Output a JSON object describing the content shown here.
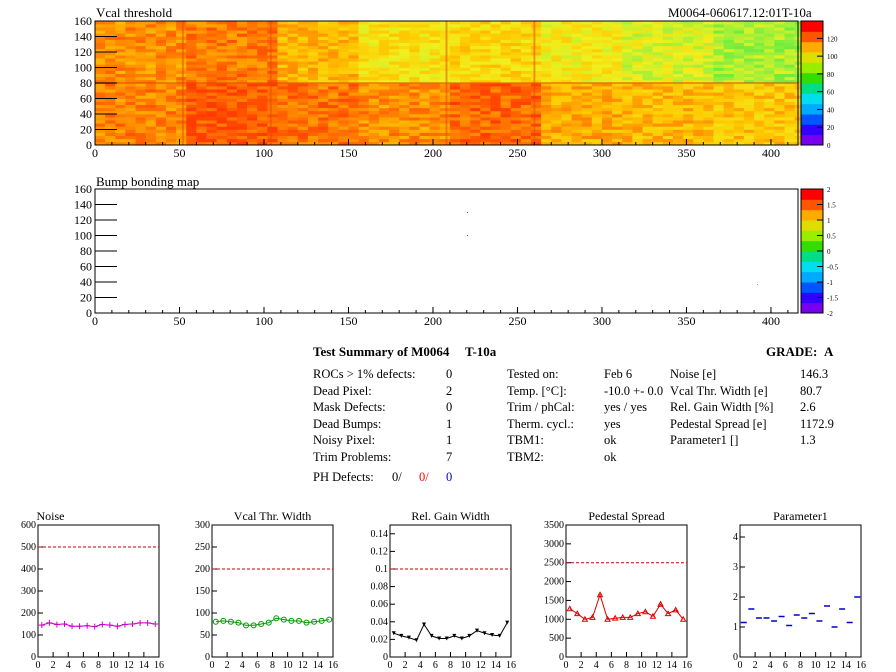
{
  "header": {
    "map1_title": "Vcal threshold",
    "map2_title": "Bump bonding map",
    "module_id": "M0064-060617.12:01T-10a"
  },
  "map1": {
    "xticks": [
      "0",
      "50",
      "100",
      "150",
      "200",
      "250",
      "300",
      "350",
      "400"
    ],
    "yticks": [
      "0",
      "20",
      "40",
      "60",
      "80",
      "100",
      "120",
      "140",
      "160"
    ],
    "palette_ticks": [
      "0",
      "20",
      "40",
      "60",
      "80",
      "100",
      "120"
    ]
  },
  "map2": {
    "xticks": [
      "0",
      "50",
      "100",
      "150",
      "200",
      "250",
      "300",
      "350",
      "400"
    ],
    "yticks": [
      "0",
      "20",
      "40",
      "60",
      "80",
      "100",
      "120",
      "140",
      "160"
    ],
    "palette_ticks": [
      "-2",
      "-1.5",
      "-1",
      "-0.5",
      "0",
      "0.5",
      "1",
      "1.5",
      "2"
    ]
  },
  "summary": {
    "title": "Test Summary of M0064",
    "test": "T-10a",
    "grade_label": "GRADE:",
    "grade": "A",
    "left": [
      {
        "label": "ROCs > 1% defects:",
        "value": "0"
      },
      {
        "label": "Dead Pixel:",
        "value": "2"
      },
      {
        "label": "Mask Defects:",
        "value": "0"
      },
      {
        "label": "Dead Bumps:",
        "value": "1"
      },
      {
        "label": "Noisy Pixel:",
        "value": "1"
      },
      {
        "label": "Trim Problems:",
        "value": "7"
      }
    ],
    "ph_label": "PH Defects:",
    "ph_values": [
      "0/",
      "0/",
      "0"
    ],
    "mid": [
      {
        "label": "Tested on:",
        "value": "Feb 6"
      },
      {
        "label": "Temp. [°C]:",
        "value": "-10.0 +- 0.0"
      },
      {
        "label": "Trim / phCal:",
        "value": "yes / yes"
      },
      {
        "label": "Therm. cycl.:",
        "value": "yes"
      },
      {
        "label": "TBM1:",
        "value": "ok"
      },
      {
        "label": "TBM2:",
        "value": "ok"
      }
    ],
    "right": [
      {
        "label": "Noise [e]",
        "value": "146.3"
      },
      {
        "label": "Vcal Thr. Width [e]",
        "value": "80.7"
      },
      {
        "label": "Rel. Gain Width [%]",
        "value": "2.6"
      },
      {
        "label": "Pedestal Spread [e]",
        "value": "1172.9"
      },
      {
        "label": "Parameter1 []",
        "value": "1.3"
      }
    ]
  },
  "colors": {
    "ph1": "#ff0000",
    "ph2": "#0000cc",
    "noise": "#cc00cc",
    "vcal": "#009900",
    "gain": "#000000",
    "ped": "#dd0000",
    "par": "#0000cc",
    "limit": "#cc0000"
  },
  "chart_data": [
    {
      "type": "line",
      "title": "Noise",
      "x": [
        0,
        1,
        2,
        3,
        4,
        5,
        6,
        7,
        8,
        9,
        10,
        11,
        12,
        13,
        14,
        15
      ],
      "values": [
        145,
        155,
        148,
        150,
        140,
        140,
        142,
        138,
        148,
        145,
        140,
        148,
        150,
        155,
        155,
        150
      ],
      "xlim": [
        0,
        16
      ],
      "ylim": [
        0,
        600
      ],
      "limit": 500,
      "yticks": [
        "0",
        "100",
        "200",
        "300",
        "400",
        "500",
        "600"
      ],
      "xticks": [
        "0",
        "2",
        "4",
        "6",
        "8",
        "10",
        "12",
        "14",
        "16"
      ]
    },
    {
      "type": "line",
      "title": "Vcal Thr. Width",
      "x": [
        0,
        1,
        2,
        3,
        4,
        5,
        6,
        7,
        8,
        9,
        10,
        11,
        12,
        13,
        14,
        15
      ],
      "values": [
        80,
        82,
        80,
        78,
        72,
        72,
        75,
        78,
        88,
        85,
        82,
        82,
        78,
        80,
        82,
        85
      ],
      "xlim": [
        0,
        16
      ],
      "ylim": [
        0,
        300
      ],
      "limit": 200,
      "yticks": [
        "0",
        "50",
        "100",
        "150",
        "200",
        "250",
        "300"
      ],
      "xticks": [
        "0",
        "2",
        "4",
        "6",
        "8",
        "10",
        "12",
        "14",
        "16"
      ]
    },
    {
      "type": "line",
      "title": "Rel. Gain Width",
      "x": [
        0,
        1,
        2,
        3,
        4,
        5,
        6,
        7,
        8,
        9,
        10,
        11,
        12,
        13,
        14,
        15
      ],
      "values": [
        0.027,
        0.024,
        0.022,
        0.019,
        0.037,
        0.024,
        0.021,
        0.021,
        0.024,
        0.021,
        0.024,
        0.03,
        0.027,
        0.025,
        0.024,
        0.039
      ],
      "xlim": [
        0,
        16
      ],
      "ylim": [
        0,
        0.15
      ],
      "limit": 0.1,
      "yticks": [
        "0",
        "0.02",
        "0.04",
        "0.06",
        "0.08",
        "0.1",
        "0.12",
        "0.14"
      ],
      "xticks": [
        "0",
        "2",
        "4",
        "6",
        "8",
        "10",
        "12",
        "14",
        "16"
      ]
    },
    {
      "type": "line",
      "title": "Pedestal Spread",
      "x": [
        0,
        1,
        2,
        3,
        4,
        5,
        6,
        7,
        8,
        9,
        10,
        11,
        12,
        13,
        14,
        15
      ],
      "values": [
        1280,
        1150,
        1000,
        1050,
        1650,
        1000,
        1030,
        1050,
        1050,
        1150,
        1200,
        1080,
        1400,
        1150,
        1250,
        1000
      ],
      "xlim": [
        0,
        16
      ],
      "ylim": [
        0,
        3500
      ],
      "limit": 2500,
      "yticks": [
        "0",
        "500",
        "1000",
        "1500",
        "2000",
        "2500",
        "3000",
        "3500"
      ],
      "xticks": [
        "0",
        "2",
        "4",
        "6",
        "8",
        "10",
        "12",
        "14",
        "16"
      ]
    },
    {
      "type": "scatter",
      "title": "Parameter1",
      "x": [
        0,
        1,
        2,
        3,
        4,
        5,
        6,
        7,
        8,
        9,
        10,
        11,
        12,
        13,
        14,
        15
      ],
      "values": [
        1.15,
        1.6,
        1.3,
        1.3,
        1.2,
        1.35,
        1.05,
        1.4,
        1.3,
        1.45,
        1.2,
        1.7,
        1.0,
        1.6,
        1.15,
        2.0
      ],
      "xlim": [
        0,
        16
      ],
      "ylim": [
        0,
        4.4
      ],
      "yticks": [
        "0",
        "1",
        "2",
        "3",
        "4"
      ],
      "xticks": [
        "0",
        "2",
        "4",
        "6",
        "8",
        "10",
        "12",
        "14",
        "16"
      ]
    }
  ]
}
